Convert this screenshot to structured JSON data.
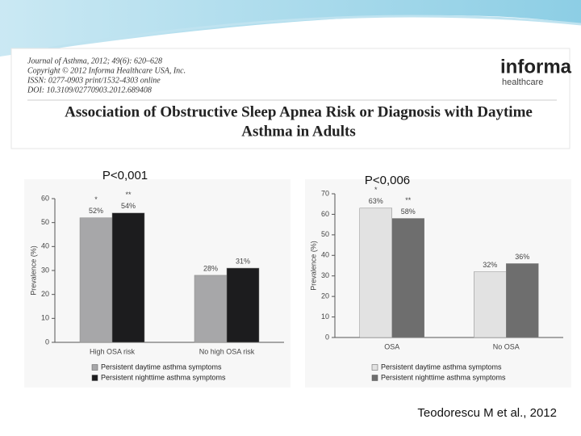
{
  "header": {
    "journal": [
      "Journal of Asthma, 2012; 49(6): 620–628",
      "Copyright © 2012 Informa Healthcare USA, Inc.",
      "ISSN: 0277-0903 print/1532-4303 online",
      "DOI: 10.3109/02770903.2012.689408"
    ],
    "logo": [
      "informa",
      "healthcare"
    ],
    "title": [
      "Association of Obstructive Sleep Apnea Risk or Diagnosis with Daytime",
      "Asthma in Adults"
    ]
  },
  "citation": "Teodorescu M et al., 2012",
  "chart_data": [
    {
      "type": "bar",
      "p_value": "P<0,001",
      "y_label": "Prevalence (%)",
      "categories": [
        "High OSA risk",
        "No high OSA risk"
      ],
      "series": [
        {
          "name": "Persistent daytime asthma symptoms",
          "color": "#a7a7a9",
          "values": [
            52,
            28
          ],
          "value_labels": [
            "52%",
            "28%"
          ]
        },
        {
          "name": "Persistent nighttime asthma symptoms",
          "color": "#1c1c1e",
          "values": [
            54,
            31
          ],
          "value_labels": [
            "54%",
            "31%"
          ]
        }
      ],
      "annotations": [
        "*",
        "**"
      ],
      "ylim": [
        0,
        60
      ],
      "yticks": [
        0,
        10,
        20,
        30,
        40,
        50,
        60
      ]
    },
    {
      "type": "bar",
      "p_value": "P<0,006",
      "y_label": "Prevalence (%)",
      "categories": [
        "OSA",
        "No OSA"
      ],
      "series": [
        {
          "name": "Persistent daytime asthma symptoms",
          "color": "#e2e2e2",
          "values": [
            63,
            32
          ],
          "value_labels": [
            "63%",
            "32%"
          ]
        },
        {
          "name": "Persistent nighttime asthma symptoms",
          "color": "#6e6e6e",
          "values": [
            58,
            36
          ],
          "value_labels": [
            "58%",
            "36%"
          ]
        }
      ],
      "annotations": [
        "*",
        "**"
      ],
      "ylim": [
        0,
        70
      ],
      "yticks": [
        0,
        10,
        20,
        30,
        40,
        50,
        60,
        70
      ]
    }
  ]
}
